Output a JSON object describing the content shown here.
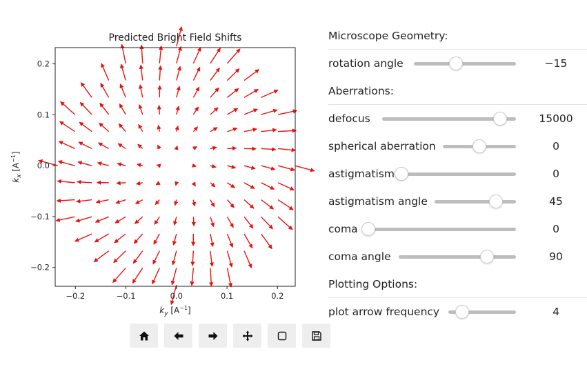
{
  "plot": {
    "title": "Predicted Bright Field Shifts",
    "xlabel": "k",
    "xlabel_sub": "y",
    "xlabel_unit": "[A",
    "xlabel_exp": "−1",
    "xlabel_close": "]",
    "ylabel": "k",
    "ylabel_sub": "x",
    "ylabel_unit": "[A",
    "ylabel_exp": "−1",
    "ylabel_close": "]"
  },
  "chart_data": {
    "type": "quiver",
    "title": "Predicted Bright Field Shifts",
    "xlabel": "k_y [A^-1]",
    "ylabel": "k_x [A^-1]",
    "xlim": [
      -0.24,
      0.235
    ],
    "ylim": [
      -0.237,
      0.232
    ],
    "xticks": [
      -0.2,
      -0.1,
      0.0,
      0.1,
      0.2
    ],
    "xtick_labels": [
      "−0.2",
      "−0.1",
      "0.0",
      "0.1",
      "0.2"
    ],
    "yticks": [
      -0.2,
      -0.1,
      0.0,
      0.1,
      0.2
    ],
    "ytick_labels": [
      "−0.2",
      "−0.1",
      "0.0",
      "0.1",
      "0.2"
    ],
    "grid_spacing": 0.0335,
    "pupil_radius": 0.235,
    "arrow_color": "#e8120c",
    "field": "radial outward, magnitude proportional to |k|, rotated by rotation angle"
  },
  "toolbar": {
    "buttons": [
      {
        "name": "home-button",
        "icon": "home-icon"
      },
      {
        "name": "back-button",
        "icon": "arrow-left-icon"
      },
      {
        "name": "forward-button",
        "icon": "arrow-right-icon"
      },
      {
        "name": "pan-button",
        "icon": "move-icon"
      },
      {
        "name": "zoom-button",
        "icon": "zoom-rect-icon"
      },
      {
        "name": "save-button",
        "icon": "save-icon"
      }
    ]
  },
  "controls": {
    "geometry_title": "Microscope Geometry:",
    "rotation": {
      "label": "rotation angle",
      "value": "−15",
      "fraction": 0.41
    },
    "aberrations_title": "Aberrations:",
    "defocus": {
      "label": "defocus",
      "value": "15000",
      "fraction": 0.88
    },
    "spherical": {
      "label": "spherical aberration",
      "value": "0",
      "fraction": 0.5
    },
    "astigmatism": {
      "label": "astigmatism",
      "value": "0",
      "fraction": 0.0
    },
    "astig_angle": {
      "label": "astigmatism angle",
      "value": "45",
      "fraction": 0.75
    },
    "coma": {
      "label": "coma",
      "value": "0",
      "fraction": 0.0
    },
    "coma_angle": {
      "label": "coma angle",
      "value": "90",
      "fraction": 0.75
    },
    "plotting_title": "Plotting Options:",
    "arrow_freq": {
      "label": "plot arrow frequency",
      "value": "4",
      "fraction": 0.2
    }
  }
}
